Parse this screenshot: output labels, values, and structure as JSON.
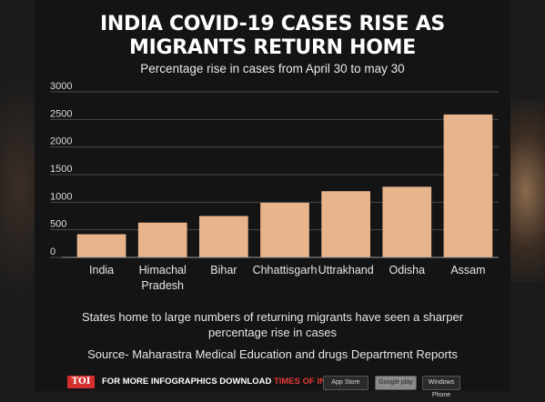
{
  "title_line1": "INDIA COVID-19 CASES RISE AS",
  "title_line2": "MIGRANTS RETURN HOME",
  "subtitle": "Percentage rise in cases from April 30 to may 30",
  "note_line1": "States home to large numbers of returning migrants have seen a sharper",
  "note_line2": "percentage rise in cases",
  "source": "Source- Maharastra Medical Education and drugs Department Reports",
  "footer": {
    "logo": "TOI",
    "text_prefix": "FOR MORE  INFOGRAPHICS DOWNLOAD ",
    "text_app": "TIMES OF INDIA  APP",
    "app_store": "App Store",
    "google_play": "Google play",
    "windows_phone": "Windows Phone"
  },
  "colors": {
    "bar": "#e8b48c",
    "background": "#141414",
    "text": "#ffffff"
  },
  "chart_data": {
    "type": "bar",
    "categories": [
      "India",
      "Himachal Pradesh",
      "Bihar",
      "Chhattisgarh",
      "Uttrakhand",
      "Odisha",
      "Assam"
    ],
    "category_lines": [
      [
        "India"
      ],
      [
        "Himachal",
        "Pradesh"
      ],
      [
        "Bihar"
      ],
      [
        "Chhattisgarh"
      ],
      [
        "Uttrakhand"
      ],
      [
        "Odisha"
      ],
      [
        "Assam"
      ]
    ],
    "values": [
      420,
      630,
      750,
      990,
      1200,
      1280,
      2590
    ],
    "title": "INDIA COVID-19 CASES RISE AS MIGRANTS RETURN HOME",
    "subtitle": "Percentage rise in cases from April 30 to may 30",
    "xlabel": "",
    "ylabel": "",
    "ylim": [
      0,
      3000
    ],
    "yticks": [
      0,
      500,
      1000,
      1500,
      2000,
      2500,
      3000
    ],
    "grid": true
  }
}
